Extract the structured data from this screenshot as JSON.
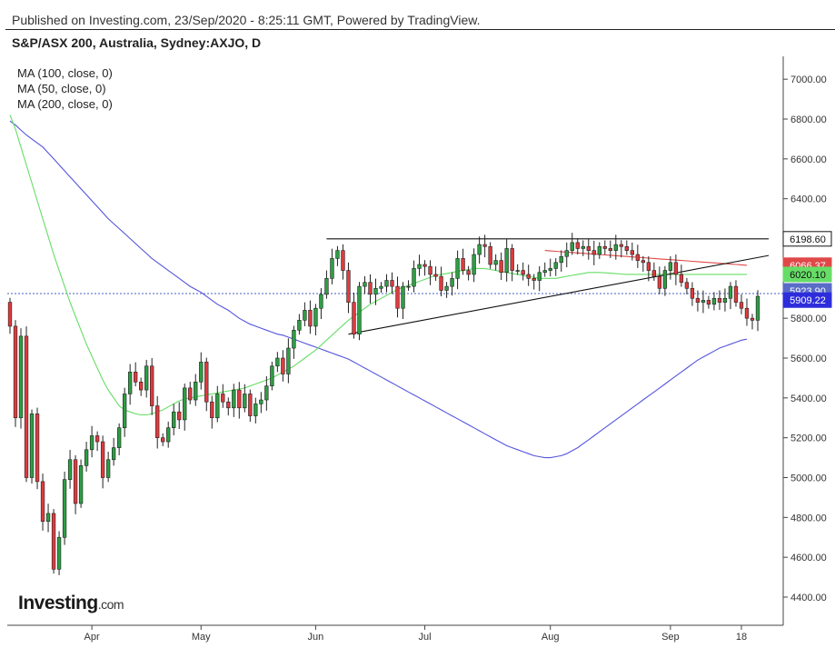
{
  "header": {
    "published": "Published on Investing.com, 23/Sep/2020 - 8:25:11 GMT, Powered by TradingView.",
    "title": "S&P/ASX 200, Australia, Sydney:AXJO, D"
  },
  "legend": [
    "MA (100, close, 0)",
    "MA (50, close, 0)",
    "MA (200, close, 0)"
  ],
  "logo": {
    "main": "Investing",
    "suffix": ".com"
  },
  "colors": {
    "up": "#2e9e44",
    "down": "#e03a3e",
    "ma100": "#5555dd",
    "ma50": "#66dd66",
    "ma200": "#e04848",
    "trendline": "#111111",
    "axis_text": "#333333"
  },
  "chart_data": {
    "type": "candlestick",
    "title": "S&P/ASX 200, Australia, Sydney:AXJO, D",
    "ylim": [
      4250,
      7150
    ],
    "y_ticks": [
      4400,
      4600,
      4800,
      5000,
      5200,
      5400,
      5600,
      5800,
      6000,
      6200,
      6400,
      6600,
      6800,
      7000
    ],
    "y_tick_labels": [
      "4400.00",
      "4600.00",
      "4800.00",
      "5000.00",
      "5200.00",
      "5400.00",
      "5600.00",
      "5800.00",
      "6000.00",
      "6200.00",
      "6400.00",
      "6600.00",
      "6800.00",
      "7000.00"
    ],
    "x_ticks": [
      {
        "label": "Apr",
        "index": 15
      },
      {
        "label": "May",
        "index": 35
      },
      {
        "label": "Jun",
        "index": 56
      },
      {
        "label": "Jul",
        "index": 76
      },
      {
        "label": "Aug",
        "index": 99
      },
      {
        "label": "Sep",
        "index": 121
      },
      {
        "label": "18",
        "index": 134
      }
    ],
    "closes": [
      5760,
      5300,
      5710,
      5000,
      5320,
      4980,
      4780,
      4820,
      4540,
      4700,
      4990,
      5090,
      4870,
      5060,
      5140,
      5210,
      5180,
      5000,
      5090,
      5150,
      5250,
      5420,
      5530,
      5480,
      5440,
      5560,
      5360,
      5200,
      5180,
      5250,
      5330,
      5290,
      5450,
      5390,
      5480,
      5580,
      5380,
      5300,
      5420,
      5380,
      5350,
      5440,
      5350,
      5420,
      5310,
      5370,
      5390,
      5460,
      5560,
      5600,
      5520,
      5650,
      5740,
      5790,
      5840,
      5760,
      5850,
      5920,
      6000,
      6100,
      6140,
      6040,
      5880,
      5720,
      5960,
      5980,
      5920,
      5950,
      5960,
      5990,
      5960,
      5850,
      5960,
      5960,
      6050,
      6070,
      6060,
      6020,
      6010,
      5940,
      5960,
      6000,
      6100,
      6040,
      6020,
      6120,
      6170,
      6160,
      6070,
      6090,
      6030,
      6150,
      6040,
      6040,
      6020,
      6000,
      5990,
      6030,
      6040,
      6050,
      6080,
      6110,
      6140,
      6180,
      6150,
      6160,
      6140,
      6120,
      6160,
      6150,
      6140,
      6170,
      6160,
      6140,
      6120,
      6090,
      6080,
      6040,
      6010,
      5950,
      6040,
      6080,
      6020,
      5980,
      5950,
      5900,
      5880,
      5890,
      5870,
      5900,
      5880,
      5900,
      5960,
      5880,
      5850,
      5800,
      5790,
      5910
    ],
    "ma100": [
      6790,
      6770,
      6745,
      6720,
      6700,
      6680,
      6660,
      6630,
      6600,
      6570,
      6540,
      6510,
      6480,
      6450,
      6420,
      6390,
      6360,
      6330,
      6300,
      6275,
      6250,
      6225,
      6200,
      6175,
      6150,
      6125,
      6100,
      6080,
      6060,
      6040,
      6020,
      6000,
      5980,
      5960,
      5945,
      5930,
      5910,
      5890,
      5870,
      5855,
      5840,
      5820,
      5800,
      5785,
      5770,
      5760,
      5750,
      5740,
      5730,
      5720,
      5715,
      5705,
      5695,
      5685,
      5675,
      5665,
      5655,
      5645,
      5635,
      5625,
      5615,
      5605,
      5595,
      5580,
      5565,
      5550,
      5535,
      5520,
      5505,
      5490,
      5475,
      5460,
      5445,
      5430,
      5415,
      5400,
      5385,
      5370,
      5355,
      5340,
      5325,
      5310,
      5295,
      5280,
      5265,
      5250,
      5235,
      5220,
      5205,
      5190,
      5175,
      5160,
      5150,
      5140,
      5130,
      5120,
      5110,
      5105,
      5100,
      5100,
      5105,
      5110,
      5120,
      5135,
      5150,
      5170,
      5190,
      5210,
      5230,
      5250,
      5270,
      5290,
      5310,
      5330,
      5350,
      5370,
      5390,
      5410,
      5430,
      5450,
      5470,
      5490,
      5510,
      5530,
      5550,
      5570,
      5590,
      5605,
      5620,
      5635,
      5650,
      5660,
      5670,
      5680,
      5690,
      5695
    ],
    "ma50": [
      6820,
      6750,
      6660,
      6570,
      6480,
      6390,
      6300,
      6210,
      6120,
      6040,
      5960,
      5880,
      5810,
      5740,
      5670,
      5610,
      5550,
      5490,
      5440,
      5400,
      5360,
      5340,
      5330,
      5320,
      5315,
      5315,
      5320,
      5330,
      5340,
      5355,
      5370,
      5385,
      5395,
      5400,
      5405,
      5410,
      5415,
      5420,
      5425,
      5430,
      5435,
      5440,
      5445,
      5450,
      5460,
      5470,
      5480,
      5490,
      5500,
      5515,
      5530,
      5545,
      5560,
      5580,
      5600,
      5620,
      5640,
      5665,
      5690,
      5715,
      5740,
      5765,
      5790,
      5810,
      5830,
      5850,
      5870,
      5885,
      5900,
      5915,
      5930,
      5945,
      5955,
      5965,
      5975,
      5985,
      5995,
      6005,
      6015,
      6020,
      6025,
      6030,
      6035,
      6040,
      6045,
      6050,
      6050,
      6050,
      6045,
      6040,
      6035,
      6030,
      6025,
      6020,
      6015,
      6010,
      6005,
      6000,
      6000,
      6000,
      6000,
      6005,
      6010,
      6015,
      6020,
      6025,
      6030,
      6030,
      6030,
      6028,
      6026,
      6024,
      6022,
      6020,
      6020,
      6020,
      6020,
      6020,
      6020,
      6020,
      6020,
      6020,
      6020,
      6020,
      6020,
      6020,
      6020,
      6020,
      6020,
      6020,
      6020,
      6020,
      6020,
      6020,
      6020,
      6020
    ],
    "ma200": [
      6140,
      6138,
      6136,
      6134,
      6132,
      6130,
      6128,
      6126,
      6124,
      6122,
      6120,
      6118,
      6116,
      6114,
      6112,
      6110,
      6108,
      6106,
      6104,
      6102,
      6100,
      6098,
      6096,
      6094,
      6092,
      6090,
      6088,
      6086,
      6084,
      6082,
      6080,
      6078,
      6076,
      6074,
      6072,
      6070,
      6068,
      6066
    ],
    "ma200_start_index": 98,
    "trendlines": [
      {
        "x1": 58,
        "y1": 6198.6,
        "x2": 139,
        "y2": 6198.6
      },
      {
        "x1": 62,
        "y1": 5720,
        "x2": 139,
        "y2": 6115
      }
    ],
    "price_line": 5923.9,
    "price_tags": [
      {
        "value": 6198.6,
        "label": "6198.60",
        "bg": "#ffffff",
        "fg": "#111111",
        "border": "#111111"
      },
      {
        "value": 6066.37,
        "label": "6066.37",
        "bg": "#e04848",
        "fg": "#ffffff"
      },
      {
        "value": 6020.1,
        "label": "6020.10",
        "bg": "#66dd66",
        "fg": "#111111"
      },
      {
        "value": 5923.9,
        "label": "5923.90",
        "bg": "#5a6cc8",
        "fg": "#ffffff"
      },
      {
        "value": 5909.22,
        "label": "5909.22",
        "bg": "#2d2ddb",
        "fg": "#ffffff"
      }
    ],
    "grid": false
  }
}
